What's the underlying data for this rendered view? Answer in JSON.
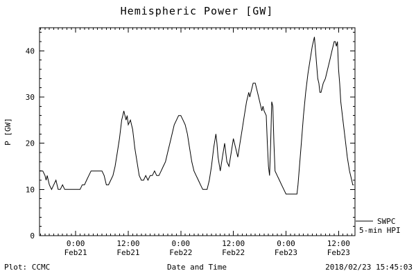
{
  "chart_data": {
    "type": "line",
    "title": "Hemispheric Power [GW]",
    "xlabel": "Date and Time",
    "ylabel": "P [GW]",
    "xlim": [
      -8.25,
      63.75
    ],
    "ylim": [
      0,
      45
    ],
    "x_units": "hours relative to 2018 Feb21 00:00",
    "grid": false,
    "line_color": "#000000",
    "x_ticks": [
      {
        "pos": 0,
        "time": "0:00",
        "date": "Feb21"
      },
      {
        "pos": 12,
        "time": "12:00",
        "date": "Feb21"
      },
      {
        "pos": 24,
        "time": "0:00",
        "date": "Feb22"
      },
      {
        "pos": 36,
        "time": "12:00",
        "date": "Feb22"
      },
      {
        "pos": 48,
        "time": "0:00",
        "date": "Feb23"
      },
      {
        "pos": 60,
        "time": "12:00",
        "date": "Feb23"
      }
    ],
    "y_ticks": [
      0,
      10,
      20,
      30,
      40
    ],
    "series": [
      {
        "name": "SWPC 5-min HPI",
        "points": [
          [
            -8.25,
            14
          ],
          [
            -7.5,
            14
          ],
          [
            -7,
            13
          ],
          [
            -6.75,
            12
          ],
          [
            -6.5,
            13
          ],
          [
            -6.25,
            12
          ],
          [
            -6,
            11
          ],
          [
            -5.5,
            10
          ],
          [
            -5,
            11
          ],
          [
            -4.5,
            12
          ],
          [
            -4.25,
            11
          ],
          [
            -4,
            10
          ],
          [
            -3.5,
            10
          ],
          [
            -3,
            11
          ],
          [
            -2.5,
            10
          ],
          [
            -2,
            10
          ],
          [
            -1.5,
            10
          ],
          [
            -1,
            10
          ],
          [
            -0.5,
            10
          ],
          [
            0,
            10
          ],
          [
            0.5,
            10
          ],
          [
            1,
            10
          ],
          [
            1.5,
            11
          ],
          [
            2,
            11
          ],
          [
            2.5,
            12
          ],
          [
            3,
            13
          ],
          [
            3.5,
            14
          ],
          [
            4,
            14
          ],
          [
            4.5,
            14
          ],
          [
            5,
            14
          ],
          [
            5.5,
            14
          ],
          [
            6,
            14
          ],
          [
            6.5,
            13
          ],
          [
            7,
            11
          ],
          [
            7.5,
            11
          ],
          [
            8,
            12
          ],
          [
            8.5,
            13
          ],
          [
            9,
            15
          ],
          [
            9.5,
            18
          ],
          [
            10,
            21
          ],
          [
            10.25,
            23
          ],
          [
            10.5,
            25
          ],
          [
            10.75,
            26
          ],
          [
            11,
            27
          ],
          [
            11.25,
            26
          ],
          [
            11.5,
            25
          ],
          [
            11.75,
            26
          ],
          [
            12,
            24
          ],
          [
            12.5,
            25
          ],
          [
            13,
            23
          ],
          [
            13.25,
            21
          ],
          [
            13.5,
            19
          ],
          [
            14,
            16
          ],
          [
            14.5,
            13
          ],
          [
            15,
            12
          ],
          [
            15.5,
            12
          ],
          [
            16,
            13
          ],
          [
            16.5,
            12
          ],
          [
            17,
            13
          ],
          [
            17.5,
            13
          ],
          [
            18,
            14
          ],
          [
            18.5,
            13
          ],
          [
            19,
            13
          ],
          [
            19.5,
            14
          ],
          [
            20,
            15
          ],
          [
            20.5,
            16
          ],
          [
            21,
            18
          ],
          [
            21.5,
            20
          ],
          [
            22,
            22
          ],
          [
            22.5,
            24
          ],
          [
            23,
            25
          ],
          [
            23.5,
            26
          ],
          [
            24,
            26
          ],
          [
            24.5,
            25
          ],
          [
            25,
            24
          ],
          [
            25.5,
            22
          ],
          [
            26,
            19
          ],
          [
            26.5,
            16
          ],
          [
            27,
            14
          ],
          [
            27.5,
            13
          ],
          [
            28,
            12
          ],
          [
            28.5,
            11
          ],
          [
            29,
            10
          ],
          [
            29.5,
            10
          ],
          [
            30,
            10
          ],
          [
            30.5,
            12
          ],
          [
            31,
            15
          ],
          [
            31.5,
            19
          ],
          [
            32,
            22
          ],
          [
            32.25,
            20
          ],
          [
            32.5,
            17
          ],
          [
            33,
            14
          ],
          [
            33.5,
            17
          ],
          [
            34,
            20
          ],
          [
            34.25,
            18
          ],
          [
            34.5,
            16
          ],
          [
            35,
            15
          ],
          [
            35.5,
            18
          ],
          [
            36,
            21
          ],
          [
            36.5,
            19
          ],
          [
            37,
            17
          ],
          [
            37.5,
            20
          ],
          [
            38,
            23
          ],
          [
            38.5,
            26
          ],
          [
            39,
            29
          ],
          [
            39.25,
            30
          ],
          [
            39.5,
            31
          ],
          [
            39.75,
            30
          ],
          [
            40,
            31
          ],
          [
            40.25,
            32
          ],
          [
            40.5,
            33
          ],
          [
            41,
            33
          ],
          [
            41.25,
            32
          ],
          [
            41.5,
            31
          ],
          [
            42,
            29
          ],
          [
            42.25,
            28
          ],
          [
            42.5,
            27
          ],
          [
            42.75,
            28
          ],
          [
            43,
            27
          ],
          [
            43.5,
            26
          ],
          [
            43.75,
            20
          ],
          [
            44,
            15
          ],
          [
            44.25,
            13
          ],
          [
            44.5,
            20
          ],
          [
            44.75,
            29
          ],
          [
            45,
            28
          ],
          [
            45.25,
            20
          ],
          [
            45.5,
            14
          ],
          [
            46,
            13
          ],
          [
            46.5,
            12
          ],
          [
            47,
            11
          ],
          [
            47.5,
            10
          ],
          [
            48,
            9
          ],
          [
            48.5,
            9
          ],
          [
            49,
            9
          ],
          [
            49.5,
            9
          ],
          [
            50,
            9
          ],
          [
            50.5,
            9
          ],
          [
            50.75,
            11
          ],
          [
            51,
            14
          ],
          [
            51.5,
            20
          ],
          [
            52,
            26
          ],
          [
            52.5,
            31
          ],
          [
            53,
            35
          ],
          [
            53.5,
            38
          ],
          [
            54,
            41
          ],
          [
            54.5,
            43
          ],
          [
            54.75,
            40
          ],
          [
            55,
            37
          ],
          [
            55.25,
            34
          ],
          [
            55.5,
            33
          ],
          [
            55.75,
            31
          ],
          [
            56,
            31
          ],
          [
            56.5,
            33
          ],
          [
            57,
            34
          ],
          [
            57.5,
            36
          ],
          [
            58,
            38
          ],
          [
            58.5,
            40
          ],
          [
            59,
            42
          ],
          [
            59.25,
            42
          ],
          [
            59.5,
            41
          ],
          [
            59.75,
            42
          ],
          [
            60,
            36
          ],
          [
            60.25,
            33
          ],
          [
            60.5,
            29
          ],
          [
            61,
            25
          ],
          [
            61.5,
            21
          ],
          [
            62,
            17
          ],
          [
            62.5,
            14
          ],
          [
            63,
            12
          ],
          [
            63.25,
            11
          ],
          [
            63.5,
            11
          ]
        ]
      }
    ]
  },
  "legend": {
    "source": "SWPC",
    "series": "5-min HPI"
  },
  "footer": {
    "credit": "Plot: CCMC",
    "timestamp": "2018/02/23 15:45:03"
  }
}
